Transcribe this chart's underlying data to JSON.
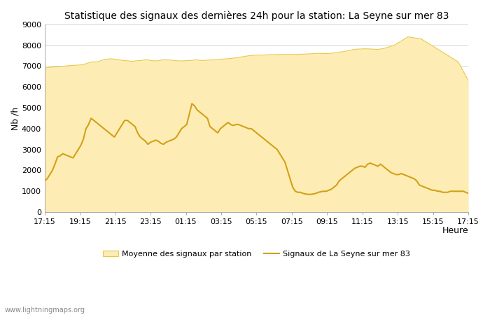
{
  "title": "Statistique des signaux des dernières 24h pour la station: La Seyne sur mer 83",
  "xlabel": "Heure",
  "ylabel": "Nb /h",
  "ylim": [
    0,
    9000
  ],
  "yticks": [
    0,
    1000,
    2000,
    3000,
    4000,
    5000,
    6000,
    7000,
    8000,
    9000
  ],
  "xtick_labels": [
    "17:15",
    "19:15",
    "21:15",
    "23:15",
    "01:15",
    "03:15",
    "05:15",
    "07:15",
    "09:15",
    "11:15",
    "13:15",
    "15:15",
    "17:15"
  ],
  "background_color": "#ffffff",
  "fill_color": "#FDEDB5",
  "line_color": "#D4A017",
  "fill_edge_color": "#E8C84A",
  "watermark": "www.lightningmaps.org",
  "legend_fill": "Moyenne des signaux par station",
  "legend_line": "Signaux de La Seyne sur mer 83",
  "avg_y": [
    6900,
    6930,
    6950,
    6960,
    6970,
    6980,
    7000,
    7020,
    7030,
    7040,
    7050,
    7060,
    7100,
    7150,
    7200,
    7200,
    7220,
    7280,
    7320,
    7340,
    7350,
    7330,
    7300,
    7280,
    7260,
    7250,
    7230,
    7250,
    7260,
    7280,
    7300,
    7290,
    7260,
    7250,
    7260,
    7300,
    7300,
    7290,
    7280,
    7260,
    7250,
    7250,
    7260,
    7270,
    7280,
    7300,
    7280,
    7270,
    7280,
    7290,
    7300,
    7310,
    7320,
    7340,
    7350,
    7360,
    7380,
    7400,
    7430,
    7450,
    7480,
    7500,
    7520,
    7530,
    7530,
    7530,
    7540,
    7550,
    7550,
    7555,
    7560,
    7560,
    7560,
    7560,
    7560,
    7560,
    7570,
    7575,
    7580,
    7590,
    7600,
    7610,
    7610,
    7600,
    7600,
    7610,
    7630,
    7650,
    7680,
    7700,
    7730,
    7760,
    7800,
    7815,
    7820,
    7830,
    7825,
    7820,
    7810,
    7800,
    7820,
    7850,
    7900,
    7950,
    8000,
    8100,
    8200,
    8300,
    8400,
    8380,
    8350,
    8330,
    8300,
    8200,
    8100,
    8000,
    7900,
    7800,
    7700,
    7600,
    7500,
    7400,
    7300,
    7200,
    6900,
    6600,
    6300
  ],
  "signal_y": [
    1500,
    1600,
    1800,
    2000,
    2300,
    2650,
    2700,
    2800,
    2750,
    2700,
    2650,
    2600,
    2800,
    3000,
    3200,
    3500,
    4000,
    4200,
    4500,
    4400,
    4300,
    4200,
    4100,
    4000,
    3900,
    3800,
    3700,
    3600,
    3800,
    4000,
    4200,
    4400,
    4400,
    4300,
    4200,
    4100,
    3800,
    3600,
    3500,
    3400,
    3250,
    3350,
    3400,
    3450,
    3400,
    3300,
    3250,
    3350,
    3400,
    3450,
    3500,
    3600,
    3800,
    4000,
    4100,
    4200,
    4700,
    5200,
    5100,
    4900,
    4800,
    4700,
    4600,
    4500,
    4100,
    4000,
    3900,
    3800,
    4000,
    4100,
    4200,
    4300,
    4200,
    4150,
    4200,
    4200,
    4150,
    4100,
    4050,
    4000,
    4000,
    3900,
    3800,
    3700,
    3600,
    3500,
    3400,
    3300,
    3200,
    3100,
    3000,
    2800,
    2600,
    2400,
    2000,
    1600,
    1200,
    1000,
    950,
    950,
    900,
    870,
    850,
    850,
    870,
    900,
    950,
    980,
    1000,
    1000,
    1050,
    1100,
    1200,
    1300,
    1500,
    1600,
    1700,
    1800,
    1900,
    2000,
    2100,
    2150,
    2200,
    2200,
    2150,
    2300,
    2350,
    2300,
    2250,
    2200,
    2300,
    2200,
    2100,
    2000,
    1900,
    1850,
    1800,
    1800,
    1850,
    1800,
    1750,
    1700,
    1650,
    1600,
    1500,
    1300,
    1250,
    1200,
    1150,
    1100,
    1050,
    1050,
    1000,
    1000,
    950,
    950,
    950,
    1000,
    1000,
    1000,
    1000,
    1000,
    1000,
    950,
    900
  ]
}
